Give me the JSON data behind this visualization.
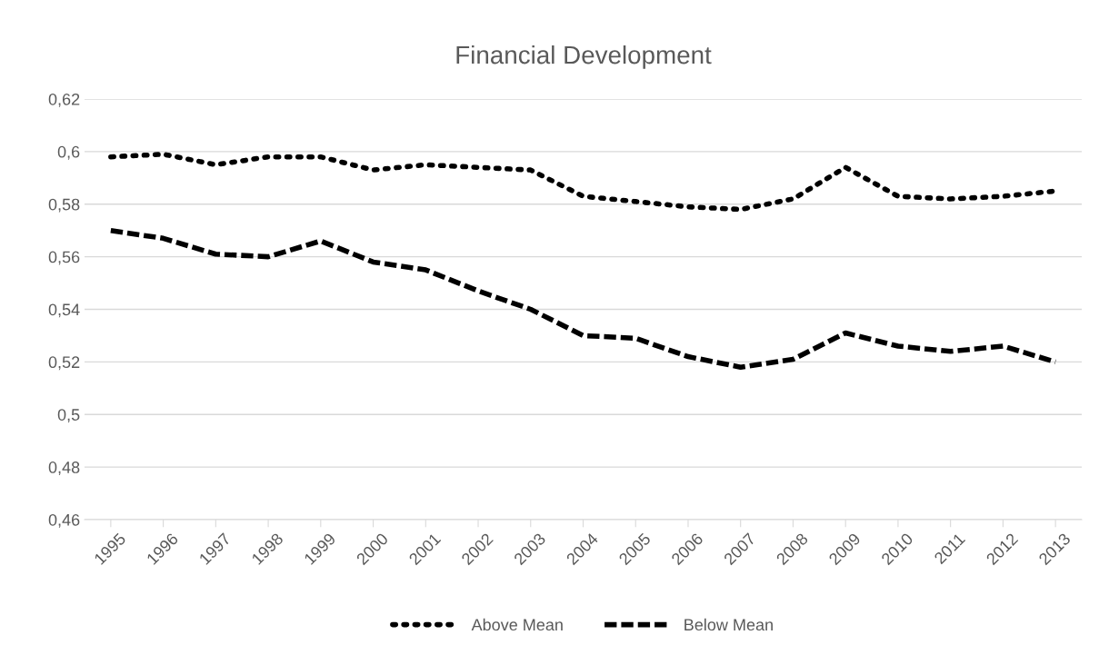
{
  "chart_data": {
    "type": "line",
    "title": "Financial Development",
    "categories": [
      "1995",
      "1996",
      "1997",
      "1998",
      "1999",
      "2000",
      "2001",
      "2002",
      "2003",
      "2004",
      "2005",
      "2006",
      "2007",
      "2008",
      "2009",
      "2010",
      "2011",
      "2012",
      "2013"
    ],
    "series": [
      {
        "name": "Above Mean",
        "color": "#000000",
        "line_style": "dotted",
        "values": [
          0.598,
          0.599,
          0.595,
          0.598,
          0.598,
          0.593,
          0.595,
          0.594,
          0.593,
          0.583,
          0.581,
          0.579,
          0.578,
          0.582,
          0.594,
          0.583,
          0.582,
          0.583,
          0.585
        ]
      },
      {
        "name": "Below Mean",
        "color": "#000000",
        "line_style": "dashed",
        "values": [
          0.57,
          0.567,
          0.561,
          0.56,
          0.566,
          0.558,
          0.555,
          0.547,
          0.54,
          0.53,
          0.529,
          0.522,
          0.518,
          0.521,
          0.531,
          0.526,
          0.524,
          0.526,
          0.52
        ]
      }
    ],
    "ylim": [
      0.46,
      0.62
    ],
    "yticks": [
      {
        "value": 0.46,
        "label": "0,46"
      },
      {
        "value": 0.48,
        "label": "0,48"
      },
      {
        "value": 0.5,
        "label": "0,5"
      },
      {
        "value": 0.52,
        "label": "0,52"
      },
      {
        "value": 0.54,
        "label": "0,54"
      },
      {
        "value": 0.56,
        "label": "0,56"
      },
      {
        "value": 0.58,
        "label": "0,58"
      },
      {
        "value": 0.6,
        "label": "0,6"
      },
      {
        "value": 0.62,
        "label": "0,62"
      }
    ],
    "grid": "y",
    "legend": "bottom",
    "marker": "none"
  }
}
